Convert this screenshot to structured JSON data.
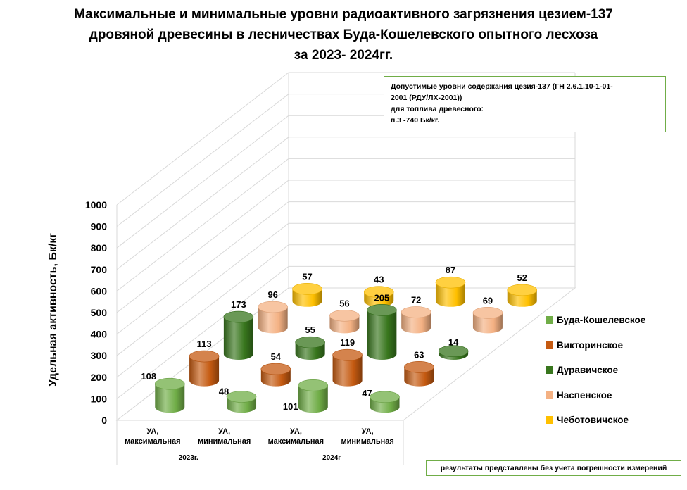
{
  "title": {
    "line1": "Максимальные и минимальные уровни радиоактивного загрязнения цезием-137",
    "line2": "дровяной древесины в лесничествах Буда-Кошелевского опытного лесхоза",
    "line3": "за 2023- 2024гг."
  },
  "norm_box": {
    "line1": "Допустимые уровни содержания цезия-137 (ГН 2.6.1.10-1-01-",
    "line2": "2001 (РДУ/ЛХ-2001))",
    "line3": "для топлива древесного:",
    "line4": "п.3 -740 Бк/кг."
  },
  "footnote": "результаты представлены без учета погрешности измерений",
  "chart_data": {
    "type": "bar",
    "style": "3d-cylinder",
    "title": "Максимальные и минимальные уровни радиоактивного загрязнения цезием-137 дровяной древесины в лесничествах Буда-Кошелевского опытного лесхоза за 2023- 2024гг.",
    "ylabel": "Удельная активность, Бк/кг",
    "xlabel": "",
    "ylim": [
      0,
      1000
    ],
    "yticks": [
      "0",
      "100",
      "200",
      "300",
      "400",
      "500",
      "600",
      "700",
      "800",
      "900",
      "1000"
    ],
    "grid": true,
    "legend_position": "right",
    "categories": [
      "УА, максимальная",
      "УА, минимальная",
      "УА, максимальная",
      "УА, минимальная"
    ],
    "category_lines": [
      [
        "УА,",
        "максимальная"
      ],
      [
        "УА,",
        "минимальная"
      ],
      [
        "УА,",
        "максимальная"
      ],
      [
        "УА,",
        "минимальная"
      ]
    ],
    "groups": [
      "2023г.",
      "2024г"
    ],
    "series": [
      {
        "name": "Буда-Кошелевское",
        "color": "#70ad47",
        "values": [
          108,
          48,
          101,
          47
        ]
      },
      {
        "name": "Викторинское",
        "color": "#c55a11",
        "values": [
          113,
          54,
          119,
          63
        ]
      },
      {
        "name": "Дуравичское",
        "color": "#38761d",
        "values": [
          173,
          55,
          205,
          14
        ]
      },
      {
        "name": "Наспенское",
        "color": "#f4b183",
        "values": [
          96,
          56,
          72,
          69
        ]
      },
      {
        "name": "Чеботовичское",
        "color": "#ffc000",
        "values": [
          57,
          43,
          87,
          52
        ]
      }
    ]
  }
}
